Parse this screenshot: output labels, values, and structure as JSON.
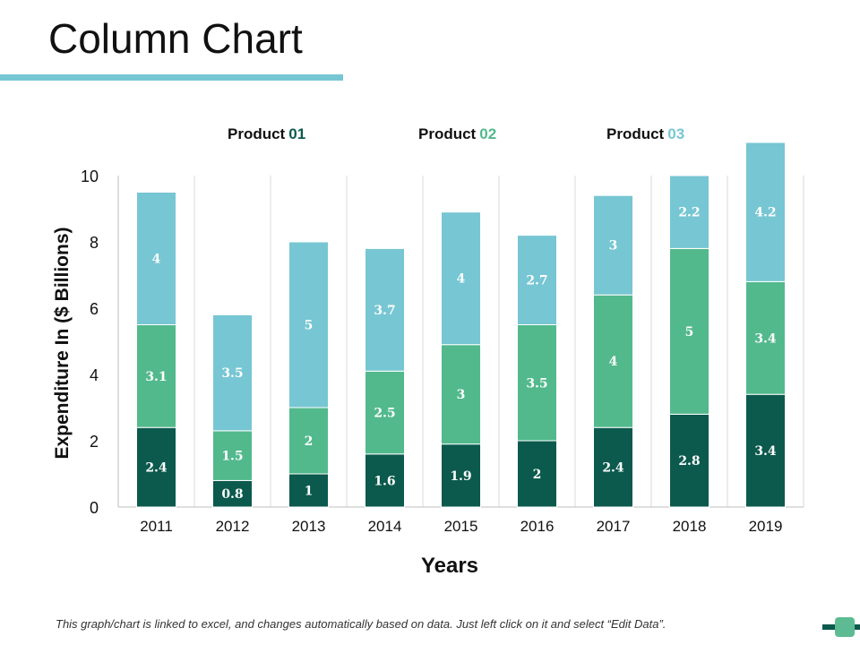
{
  "page": {
    "title": "Column Chart",
    "footnote": "This graph/chart is linked to excel, and changes automatically based on data. Just left click on it and select “Edit Data”."
  },
  "colors": {
    "accent_rule": "#77c6d3",
    "product_01": "#0b5a4d",
    "product_02": "#52b98c",
    "product_03": "#77c6d3",
    "grid": "#d9d9d9"
  },
  "legend": [
    {
      "name": "Product",
      "num": "01",
      "color": "#0b5a4d"
    },
    {
      "name": "Product",
      "num": "02",
      "color": "#52b98c"
    },
    {
      "name": "Product",
      "num": "03",
      "color": "#77c6d3"
    }
  ],
  "chart_data": {
    "type": "bar",
    "stacked": true,
    "title": "Column Chart",
    "xlabel": "Years",
    "ylabel": "Expenditure In ($ Billions)",
    "ylim": [
      0,
      10
    ],
    "yticks": [
      0,
      2,
      4,
      6,
      8,
      10
    ],
    "categories": [
      "2011",
      "2012",
      "2013",
      "2014",
      "2015",
      "2016",
      "2017",
      "2018",
      "2019"
    ],
    "series": [
      {
        "name": "Product 01",
        "values": [
          2.4,
          0.8,
          1,
          1.6,
          1.9,
          2,
          2.4,
          2.8,
          3.4
        ]
      },
      {
        "name": "Product 02",
        "values": [
          3.1,
          1.5,
          2,
          2.5,
          3,
          3.5,
          4,
          5,
          3.4
        ]
      },
      {
        "name": "Product 03",
        "values": [
          4,
          3.5,
          5,
          3.7,
          4,
          2.7,
          3,
          2.2,
          4.2
        ]
      }
    ],
    "legend_position": "top"
  }
}
